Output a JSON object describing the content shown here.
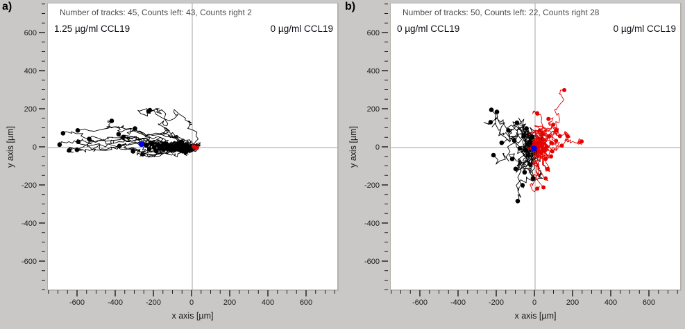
{
  "figure": {
    "background_color": "#c9c8c6",
    "plot_background_color": "#ffffff",
    "crosshair_color": "#b4b4b4",
    "header_text_color": "#4d4d4d",
    "track_left_color": "#000000",
    "track_right_color": "#e60000",
    "center_of_mass_color": "#0000ee"
  },
  "chart_data": [
    {
      "type": "line",
      "panel_label": "a)",
      "title": "Number of tracks: 45, Counts left: 43, Counts right 2",
      "annotation_left": "1.25 µg/ml CCL19",
      "annotation_right": "0 µg/ml CCL19",
      "xlabel": "x axis [µm]",
      "ylabel": "y axis [µm]",
      "xlim": [
        -760,
        760
      ],
      "ylim": [
        -760,
        760
      ],
      "xticks": [
        -600,
        -400,
        -200,
        0,
        200,
        400,
        600
      ],
      "yticks": [
        -600,
        -400,
        -200,
        0,
        200,
        400,
        600
      ],
      "minor_tick_step": 50,
      "grid": false,
      "legend": "none",
      "stats": {
        "number_of_tracks": 45,
        "counts_left": 43,
        "counts_right": 2
      },
      "series": [
        {
          "name": "tracks-left",
          "color": "#000000",
          "marker": "endpoint-dot",
          "jitter": [
            26,
            15
          ],
          "endpoints": [
            [
              -695,
              15
            ],
            [
              -677,
              75
            ],
            [
              -645,
              -15
            ],
            [
              -600,
              90
            ],
            [
              -597,
              30
            ],
            [
              -604,
              -12
            ],
            [
              -540,
              45
            ],
            [
              -422,
              140
            ],
            [
              -386,
              70
            ],
            [
              -382,
              8
            ],
            [
              -362,
              55
            ],
            [
              -300,
              100
            ],
            [
              -229,
              190,
              30,
              22
            ],
            [
              -222,
              196,
              30,
              22
            ],
            [
              -260,
              -35
            ],
            [
              -310,
              -20
            ],
            [
              -240,
              10
            ],
            [
              -225,
              -8
            ],
            [
              -210,
              20
            ],
            [
              -200,
              0
            ],
            [
              -190,
              -18
            ],
            [
              -180,
              12
            ],
            [
              -170,
              -5
            ],
            [
              -160,
              8
            ],
            [
              -150,
              -12
            ],
            [
              -140,
              15
            ],
            [
              -130,
              -3
            ],
            [
              -120,
              10
            ],
            [
              -110,
              -14
            ],
            [
              -100,
              5
            ],
            [
              -92,
              -8
            ],
            [
              -84,
              12
            ],
            [
              -76,
              -4
            ],
            [
              -68,
              8
            ],
            [
              -60,
              -10
            ],
            [
              -52,
              4
            ],
            [
              -45,
              -6
            ],
            [
              -38,
              10
            ],
            [
              -32,
              -3
            ],
            [
              -26,
              6
            ],
            [
              -20,
              -8
            ],
            [
              -15,
              3
            ],
            [
              -55,
              30
            ]
          ]
        },
        {
          "name": "tracks-right",
          "color": "#e60000",
          "marker": "endpoint-dot",
          "jitter": [
            10,
            8
          ],
          "endpoints": [
            [
              25,
              -2
            ],
            [
              8,
              6
            ]
          ]
        },
        {
          "name": "center-of-mass",
          "color": "#0000ee",
          "marker": "dot",
          "point": [
            -266,
            18
          ]
        }
      ]
    },
    {
      "type": "line",
      "panel_label": "b)",
      "title": "Number of tracks: 50, Counts left: 22, Counts right 28",
      "annotation_left": "0 µg/ml CCL19",
      "annotation_right": "0 µg/ml CCL19",
      "xlabel": "x axis [µm]",
      "ylabel": "y axis [µm]",
      "xlim": [
        -760,
        760
      ],
      "ylim": [
        -760,
        760
      ],
      "xticks": [
        -600,
        -400,
        -200,
        0,
        200,
        400,
        600
      ],
      "yticks": [
        -600,
        -400,
        -200,
        0,
        200,
        400,
        600
      ],
      "minor_tick_step": 50,
      "grid": false,
      "legend": "none",
      "stats": {
        "number_of_tracks": 50,
        "counts_left": 22,
        "counts_right": 28
      },
      "series": [
        {
          "name": "tracks-left",
          "color": "#000000",
          "marker": "endpoint-dot",
          "jitter": [
            24,
            30
          ],
          "endpoints": [
            [
              -229,
              198
            ],
            [
              -200,
              187
            ],
            [
              -233,
              133
            ],
            [
              -218,
              -40
            ],
            [
              -175,
              25
            ],
            [
              -109,
              36
            ],
            [
              -102,
              -112
            ],
            [
              -55,
              -130
            ],
            [
              -11,
              -162
            ],
            [
              -66,
              -198
            ],
            [
              -91,
              -281
            ],
            [
              -120,
              -60
            ],
            [
              -140,
              90
            ],
            [
              -95,
              130
            ],
            [
              -60,
              60
            ],
            [
              -35,
              -40
            ],
            [
              -50,
              -15
            ],
            [
              -28,
              25,
              26,
              85
            ],
            [
              -80,
              -5
            ],
            [
              -45,
              100
            ],
            [
              -25,
              -90
            ],
            [
              -15,
              55
            ]
          ]
        },
        {
          "name": "tracks-right",
          "color": "#e60000",
          "marker": "endpoint-dot",
          "jitter": [
            20,
            24
          ],
          "endpoints": [
            [
              153,
              302
            ],
            [
              11,
              180
            ],
            [
              109,
              90
            ],
            [
              244,
              32
            ],
            [
              84,
              -47
            ],
            [
              66,
              -112
            ],
            [
              55,
              -162
            ],
            [
              44,
              -209
            ],
            [
              11,
              -216
            ],
            [
              30,
              15
            ],
            [
              45,
              40
            ],
            [
              60,
              5
            ],
            [
              75,
              60
            ],
            [
              90,
              -20
            ],
            [
              110,
              35
            ],
            [
              130,
              60
            ],
            [
              55,
              -60
            ],
            [
              35,
              -25
            ],
            [
              20,
              45
            ],
            [
              95,
              120
            ],
            [
              140,
              10
            ],
            [
              170,
              60
            ],
            [
              25,
              90
            ],
            [
              70,
              150
            ],
            [
              50,
              -10
            ],
            [
              15,
              -45
            ],
            [
              85,
              25
            ],
            [
              40,
              70
            ]
          ]
        },
        {
          "name": "center-of-mass",
          "color": "#0000ee",
          "marker": "dot",
          "point": [
            -5,
            -5
          ]
        }
      ]
    }
  ]
}
